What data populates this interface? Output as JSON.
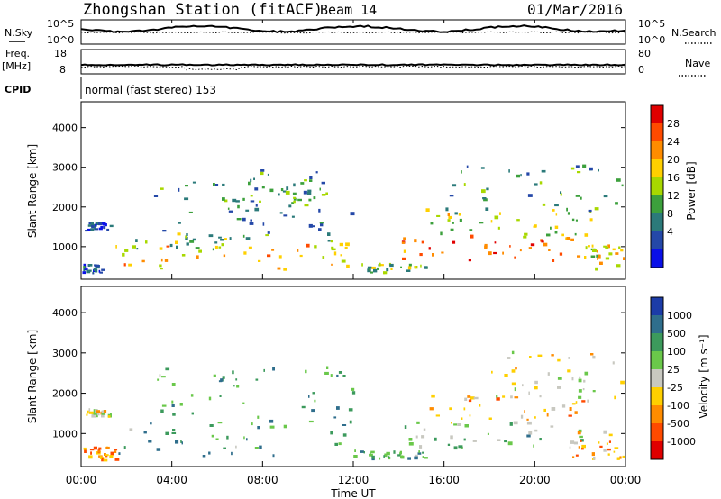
{
  "header": {
    "station": "Zhongshan Station (fitACF)",
    "beam": "Beam 14",
    "date": "01/Mar/2016"
  },
  "panels": {
    "nsky_label": "N.Sky",
    "nsky_ticks": [
      "10^5",
      "10^0"
    ],
    "nsky_ticks_right": [
      "10^5",
      "10^0"
    ],
    "nsearch_label": "N.Search",
    "freq_label_1": "Freq.",
    "freq_label_2": "[MHz]",
    "freq_ticks": [
      "18",
      "8"
    ],
    "nave_label": "Nave",
    "nave_ticks": [
      "80",
      "0"
    ],
    "cpid_label": "CPID",
    "cpid_text": "normal (fast stereo) 153"
  },
  "chart_data": [
    {
      "type": "heatmap",
      "name": "power",
      "ylabel": "Slant Range [km]",
      "xlabel": "",
      "xlim": [
        0,
        24
      ],
      "ylim": [
        180,
        4650
      ],
      "y_ticks": [
        "4000",
        "3000",
        "2000",
        "1000"
      ],
      "y_tick_values": [
        4000,
        3000,
        2000,
        1000
      ],
      "colorbar_label": "Power [dB]",
      "colorbar_ticks": [
        "28",
        "24",
        "20",
        "16",
        "12",
        "8",
        "4"
      ],
      "colorbar_colors": [
        "#e00000",
        "#ff4a00",
        "#ff8c00",
        "#ffd000",
        "#a8d800",
        "#3ca03c",
        "#2b7a7a",
        "#2448a8",
        "#0a10e8"
      ],
      "scatter_regions": [
        {
          "t0": 0.15,
          "t1": 1.3,
          "r0": 1380,
          "r1": 1560,
          "level": 0.15
        },
        {
          "t0": 0.05,
          "t1": 0.9,
          "r0": 300,
          "r1": 520,
          "level": 0.2
        },
        {
          "t0": 1.5,
          "t1": 12.3,
          "r0": 380,
          "r1": 1000,
          "level": 0.62
        },
        {
          "t0": 1.5,
          "t1": 12.3,
          "r0": 900,
          "r1": 1300,
          "level": 0.42
        },
        {
          "t0": 3.2,
          "t1": 12.0,
          "r0": 1300,
          "r1": 2600,
          "level": 0.3
        },
        {
          "t0": 6.0,
          "t1": 11.0,
          "r0": 2000,
          "r1": 2900,
          "level": 0.35
        },
        {
          "t0": 12.3,
          "t1": 15.2,
          "r0": 300,
          "r1": 520,
          "level": 0.45
        },
        {
          "t0": 14.0,
          "t1": 22.3,
          "r0": 600,
          "r1": 1250,
          "level": 0.82
        },
        {
          "t0": 15.0,
          "t1": 22.5,
          "r0": 1200,
          "r1": 1900,
          "level": 0.5
        },
        {
          "t0": 16.0,
          "t1": 24.0,
          "r0": 1800,
          "r1": 3000,
          "level": 0.35
        },
        {
          "t0": 22.0,
          "t1": 24.0,
          "r0": 300,
          "r1": 1000,
          "level": 0.6
        }
      ]
    },
    {
      "type": "heatmap",
      "name": "velocity",
      "ylabel": "Slant Range [km]",
      "xlabel": "Time UT",
      "xlim": [
        0,
        24
      ],
      "ylim": [
        180,
        4650
      ],
      "x_ticks": [
        "00:00",
        "04:00",
        "08:00",
        "12:00",
        "16:00",
        "20:00",
        "00:00"
      ],
      "x_tick_values": [
        0,
        4,
        8,
        12,
        16,
        20,
        24
      ],
      "y_ticks": [
        "4000",
        "3000",
        "2000",
        "1000"
      ],
      "y_tick_values": [
        4000,
        3000,
        2000,
        1000
      ],
      "colorbar_label": "Velocity [m s⁻¹]",
      "colorbar_ticks": [
        "1000",
        "500",
        "100",
        "25",
        "-25",
        "-100",
        "-500",
        "-1000"
      ],
      "colorbar_colors": [
        "#1c3ca8",
        "#2f6e8c",
        "#3c9a5c",
        "#6ac84a",
        "#c8c8c0",
        "#ffd000",
        "#ff8c00",
        "#ff4a00",
        "#e00000"
      ],
      "scatter_regions": [
        {
          "t0": 0.15,
          "t1": 1.3,
          "r0": 1380,
          "r1": 1560,
          "level": 0.45
        },
        {
          "t0": 0.05,
          "t1": 1.5,
          "r0": 300,
          "r1": 620,
          "level": 0.28
        },
        {
          "t0": 1.5,
          "t1": 12.3,
          "r0": 380,
          "r1": 1300,
          "level": 0.7
        },
        {
          "t0": 3.2,
          "t1": 12.0,
          "r0": 1300,
          "r1": 2600,
          "level": 0.7
        },
        {
          "t0": 12.3,
          "t1": 15.2,
          "r0": 300,
          "r1": 520,
          "level": 0.7
        },
        {
          "t0": 14.0,
          "t1": 22.3,
          "r0": 600,
          "r1": 1250,
          "level": 0.62
        },
        {
          "t0": 15.0,
          "t1": 22.5,
          "r0": 1200,
          "r1": 1900,
          "level": 0.35
        },
        {
          "t0": 18.0,
          "t1": 24.0,
          "r0": 1800,
          "r1": 3000,
          "level": 0.48
        },
        {
          "t0": 21.5,
          "t1": 24.0,
          "r0": 300,
          "r1": 1000,
          "level": 0.3
        }
      ]
    }
  ]
}
